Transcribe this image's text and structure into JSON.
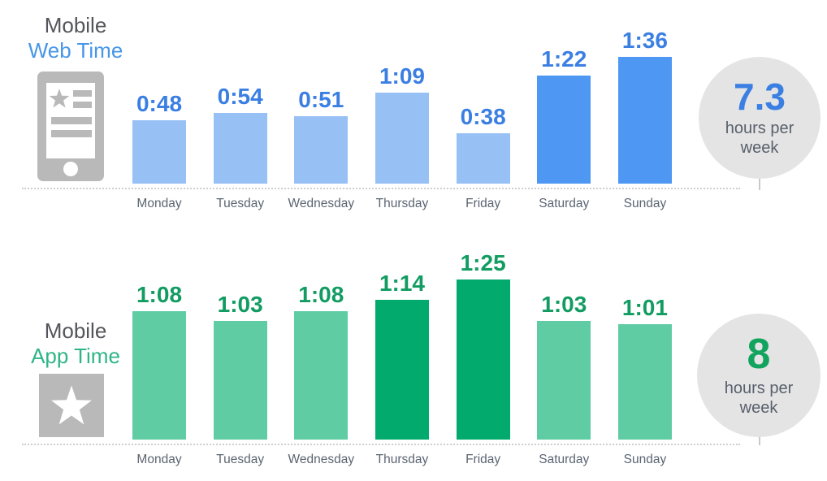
{
  "page": {
    "background": "#ffffff"
  },
  "chart_data": [
    {
      "type": "bar",
      "title": "Mobile Web Time",
      "title_line1": "Mobile",
      "title_line2": "Web Time",
      "icon": "mobile-phone-icon",
      "categories": [
        "Monday",
        "Tuesday",
        "Wednesday",
        "Thursday",
        "Friday",
        "Saturday",
        "Sunday"
      ],
      "value_labels": [
        "0:48",
        "0:54",
        "0:51",
        "1:09",
        "0:38",
        "1:22",
        "1:36"
      ],
      "values_minutes": [
        48,
        54,
        51,
        69,
        38,
        82,
        96
      ],
      "highlighted": [
        false,
        false,
        false,
        false,
        false,
        true,
        true
      ],
      "colors": {
        "bar": "#97c1f5",
        "bar_highlight": "#4e98f3",
        "value_text": "#3b7fe3",
        "title_accent": "#4796e8"
      },
      "baseline_style": "dotted",
      "grid": false,
      "legend": false,
      "summary": {
        "value": "7.3",
        "unit": "hours per week"
      }
    },
    {
      "type": "bar",
      "title": "Mobile App Time",
      "title_line1": "Mobile",
      "title_line2": "App Time",
      "icon": "star-icon",
      "categories": [
        "Monday",
        "Tuesday",
        "Wednesday",
        "Thursday",
        "Friday",
        "Saturday",
        "Sunday"
      ],
      "value_labels": [
        "1:08",
        "1:03",
        "1:08",
        "1:14",
        "1:25",
        "1:03",
        "1:01"
      ],
      "values_minutes": [
        68,
        63,
        68,
        74,
        85,
        63,
        61
      ],
      "highlighted": [
        false,
        false,
        false,
        true,
        true,
        false,
        false
      ],
      "colors": {
        "bar": "#60cca4",
        "bar_highlight": "#02aa6d",
        "value_text": "#129c62",
        "title_accent": "#2fb586"
      },
      "baseline_style": "dotted",
      "grid": false,
      "legend": false,
      "summary": {
        "value": "8",
        "unit": "hours per week"
      }
    }
  ]
}
